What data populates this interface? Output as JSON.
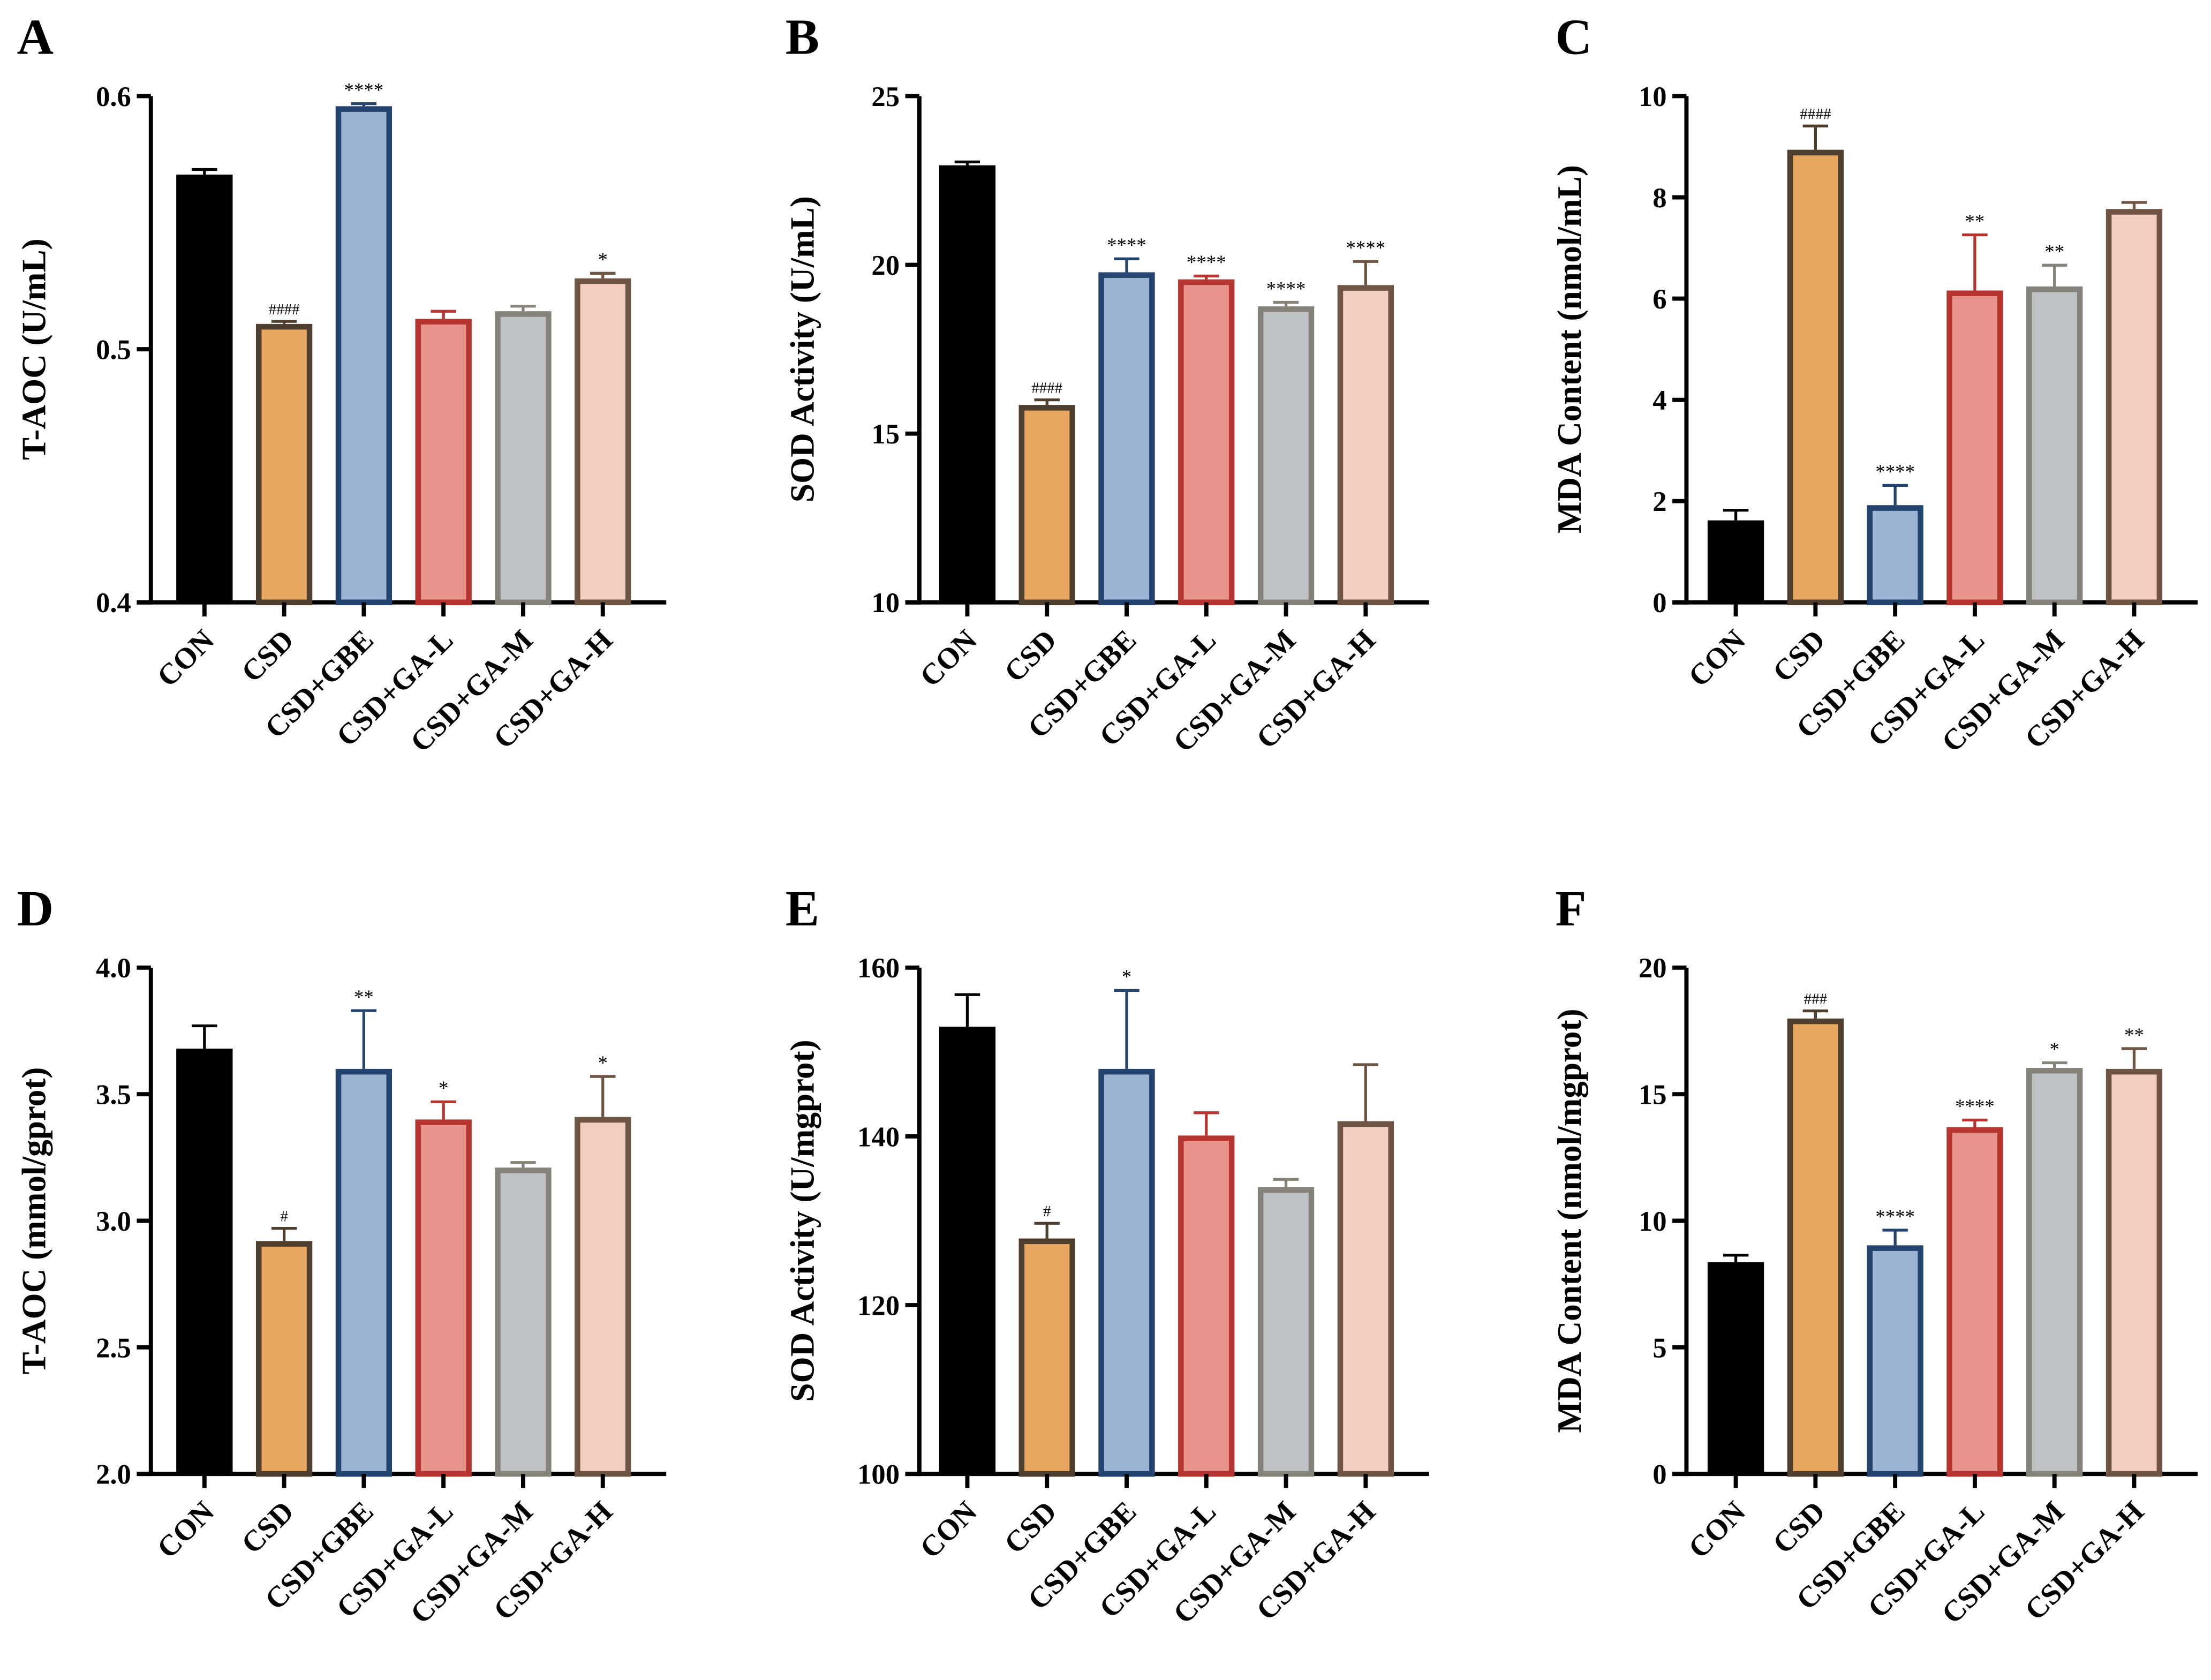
{
  "groups": [
    "CON",
    "CSD",
    "CSD+GBE",
    "CSD+GA-L",
    "CSD+GA-M",
    "CSD+GA-H"
  ],
  "colors": {
    "fill": [
      "#000000",
      "#E8A760",
      "#9BB4D4",
      "#E6948C",
      "#BFC2C4",
      "#F2CDC0"
    ],
    "stroke": [
      "#000000",
      "#4F3F2E",
      "#23446F",
      "#B73530",
      "#858279",
      "#6E5443"
    ]
  },
  "chart_data": [
    {
      "panel": "A",
      "type": "bar",
      "ylabel": "T-AOC (U/mL)",
      "ylim": [
        0.4,
        0.6
      ],
      "yticks": [
        "0.4",
        "0.5",
        "0.6"
      ],
      "values": [
        0.569,
        0.51,
        0.596,
        0.512,
        0.515,
        0.528
      ],
      "errors": [
        0.002,
        0.001,
        0.001,
        0.003,
        0.002,
        0.002
      ],
      "annotations": [
        "",
        "####",
        "****",
        "",
        "",
        "*"
      ]
    },
    {
      "panel": "B",
      "type": "bar",
      "ylabel": "SOD Activity (U/mL)",
      "ylim": [
        10,
        25
      ],
      "yticks": [
        "10",
        "15",
        "20",
        "25"
      ],
      "values": [
        22.95,
        15.85,
        19.78,
        19.57,
        18.77,
        19.4
      ],
      "errors": [
        0.1,
        0.15,
        0.4,
        0.1,
        0.12,
        0.7
      ],
      "annotations": [
        "",
        "####",
        "****",
        "****",
        "****",
        "****"
      ]
    },
    {
      "panel": "C",
      "type": "bar",
      "ylabel": "MDA Content (nmol/mL)",
      "ylim": [
        0,
        10
      ],
      "yticks": [
        "0",
        "2",
        "4",
        "6",
        "8",
        "10"
      ],
      "values": [
        1.62,
        8.94,
        1.92,
        6.16,
        6.24,
        7.77
      ],
      "errors": [
        0.2,
        0.47,
        0.39,
        1.1,
        0.42,
        0.13
      ],
      "annotations": [
        "",
        "####",
        "****",
        "**",
        "**",
        ""
      ]
    },
    {
      "panel": "D",
      "type": "bar",
      "ylabel": "T-AOC (mmol/gprot)",
      "ylim": [
        2.0,
        4.0
      ],
      "yticks": [
        "2.0",
        "2.5",
        "3.0",
        "3.5",
        "4.0"
      ],
      "values": [
        3.68,
        2.92,
        3.6,
        3.4,
        3.21,
        3.41
      ],
      "errors": [
        0.09,
        0.05,
        0.23,
        0.07,
        0.02,
        0.16
      ],
      "annotations": [
        "",
        "#",
        "**",
        "*",
        "",
        "*"
      ]
    },
    {
      "panel": "E",
      "type": "bar",
      "ylabel": "SOD Activity (U/mgprot)",
      "ylim": [
        100,
        160
      ],
      "yticks": [
        "100",
        "120",
        "140",
        "160"
      ],
      "values": [
        153,
        127.9,
        148,
        140.1,
        134,
        141.8
      ],
      "errors": [
        3.8,
        1.8,
        9.3,
        2.7,
        0.9,
        6.7
      ],
      "annotations": [
        "",
        "#",
        "*",
        "",
        "",
        ""
      ]
    },
    {
      "panel": "F",
      "type": "bar",
      "ylabel": "MDA Content (nmol/mgprot)",
      "ylim": [
        0,
        20
      ],
      "yticks": [
        "0",
        "5",
        "10",
        "15",
        "20"
      ],
      "values": [
        8.36,
        17.99,
        9.03,
        13.7,
        16.04,
        16.0
      ],
      "errors": [
        0.28,
        0.3,
        0.6,
        0.28,
        0.2,
        0.8
      ],
      "annotations": [
        "",
        "###",
        "****",
        "****",
        "*",
        "**"
      ]
    }
  ]
}
